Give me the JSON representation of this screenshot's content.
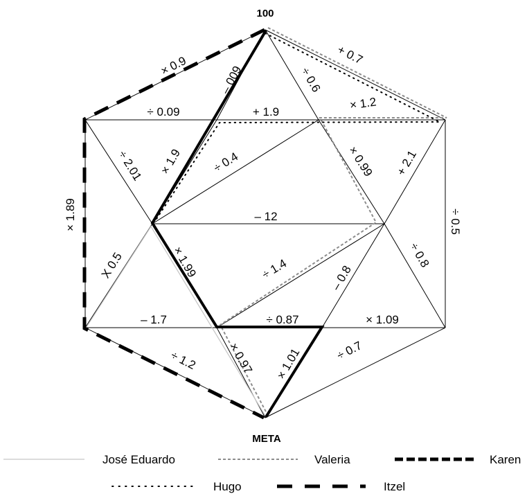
{
  "start_label": "100",
  "goal_label": "META",
  "edge_labels": {
    "e_x09": "× 0.9",
    "e_p07": "+ 0.7",
    "e_d06": "÷ 0.6",
    "e_m009": "– 009",
    "e_d009": "÷ 0.09",
    "e_p19": "+ 1.9",
    "e_x12": "× 1.2",
    "e_d201": "÷ 2.01",
    "e_x19": "× 1.9",
    "e_d04": "÷ 0.4",
    "e_x099": "× 0.99",
    "e_p21": "+ 2.1",
    "e_x189": "× 1.89",
    "e_m12": "– 12",
    "e_d05": "÷ 0.5",
    "e_x05": "X 0.5",
    "e_x199": "× 1.99",
    "e_d14": "÷ 1.4",
    "e_m08": "– 0.8",
    "e_d08": "÷ 0.8",
    "e_m17": "– 1.7",
    "e_d087": "÷ 0.87",
    "e_x109": "× 1.09",
    "e_d12": "÷ 1.2",
    "e_x097": "× 0.97",
    "e_x101": "× 1.01",
    "e_d07": "÷ 0.7"
  },
  "legend": {
    "jose": "José Eduardo",
    "valeria": "Valeria",
    "karen": "Karen",
    "hugo": "Hugo",
    "itzel": "Itzel"
  },
  "colors": {
    "jose": "#c8c8c8",
    "valeria": "#8c8c8c",
    "karen": "#000000",
    "hugo": "#000000",
    "itzel": "#000000"
  }
}
